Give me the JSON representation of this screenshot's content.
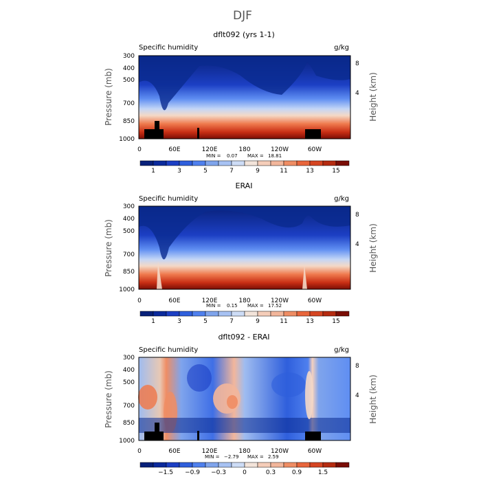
{
  "figure": {
    "title": "DJF"
  },
  "chart_data": [
    {
      "type": "heatmap",
      "title": "dflt092 (yrs 1-1)",
      "left_label": "Specific humidity",
      "units": "g/kg",
      "ylabel": "Pressure (mb)",
      "y2label": "Height (km)",
      "x_ticks": [
        "0",
        "60E",
        "120E",
        "180",
        "120W",
        "60W"
      ],
      "y_ticks": [
        "300",
        "400",
        "500",
        "700",
        "850",
        "1000"
      ],
      "y2_ticks": [
        "8",
        "4"
      ],
      "stats": {
        "min_label": "MIN =",
        "min": "0.07",
        "max_label": "MAX =",
        "max": "18.81"
      },
      "colorbar_labels": [
        "1",
        "3",
        "5",
        "7",
        "9",
        "11",
        "13",
        "15"
      ]
    },
    {
      "type": "heatmap",
      "title": "ERAI",
      "left_label": "Specific humidity",
      "units": "g/kg",
      "ylabel": "Pressure (mb)",
      "y2label": "Height (km)",
      "x_ticks": [
        "0",
        "60E",
        "120E",
        "180",
        "120W",
        "60W"
      ],
      "y_ticks": [
        "300",
        "400",
        "500",
        "700",
        "850",
        "1000"
      ],
      "y2_ticks": [
        "8",
        "4"
      ],
      "stats": {
        "min_label": "MIN =",
        "min": "0.15",
        "max_label": "MAX =",
        "max": "17.52"
      },
      "colorbar_labels": [
        "1",
        "3",
        "5",
        "7",
        "9",
        "11",
        "13",
        "15"
      ]
    },
    {
      "type": "heatmap",
      "title": "dflt092 - ERAI",
      "left_label": "Specific humidity",
      "units": "g/kg",
      "ylabel": "Pressure (mb)",
      "y2label": "Height (km)",
      "x_ticks": [
        "0",
        "60E",
        "120E",
        "180",
        "120W",
        "60W"
      ],
      "y_ticks": [
        "300",
        "400",
        "500",
        "700",
        "850",
        "1000"
      ],
      "y2_ticks": [
        "8",
        "4"
      ],
      "stats": {
        "min_label": "MIN =",
        "min": "−2.79",
        "max_label": "MAX =",
        "max": "2.59"
      },
      "colorbar_labels": [
        "−1.5",
        "−0.9",
        "−0.3",
        "0",
        "0.3",
        "0.9",
        "1.5"
      ]
    }
  ]
}
